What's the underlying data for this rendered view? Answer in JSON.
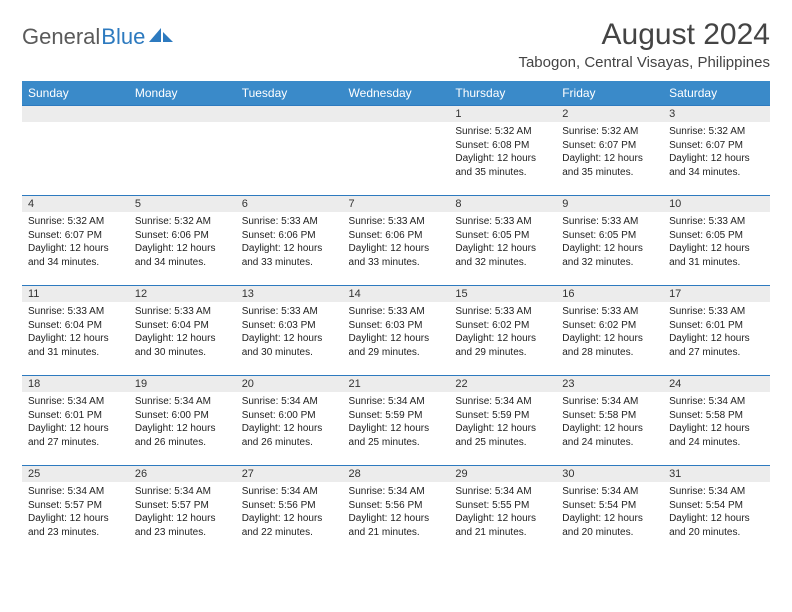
{
  "logo": {
    "word1": "General",
    "word2": "Blue"
  },
  "title": "August 2024",
  "location": "Tabogon, Central Visayas, Philippines",
  "colors": {
    "header_bg": "#3a8ac9",
    "header_text": "#ffffff",
    "daynum_bg": "#ececec",
    "cell_border": "#2d7abf",
    "logo_gray": "#5a5a5a",
    "logo_blue": "#2d7abf"
  },
  "day_headers": [
    "Sunday",
    "Monday",
    "Tuesday",
    "Wednesday",
    "Thursday",
    "Friday",
    "Saturday"
  ],
  "weeks": [
    [
      {
        "empty": true
      },
      {
        "empty": true
      },
      {
        "empty": true
      },
      {
        "empty": true
      },
      {
        "num": "1",
        "sunrise": "Sunrise: 5:32 AM",
        "sunset": "Sunset: 6:08 PM",
        "daylight": "Daylight: 12 hours and 35 minutes."
      },
      {
        "num": "2",
        "sunrise": "Sunrise: 5:32 AM",
        "sunset": "Sunset: 6:07 PM",
        "daylight": "Daylight: 12 hours and 35 minutes."
      },
      {
        "num": "3",
        "sunrise": "Sunrise: 5:32 AM",
        "sunset": "Sunset: 6:07 PM",
        "daylight": "Daylight: 12 hours and 34 minutes."
      }
    ],
    [
      {
        "num": "4",
        "sunrise": "Sunrise: 5:32 AM",
        "sunset": "Sunset: 6:07 PM",
        "daylight": "Daylight: 12 hours and 34 minutes."
      },
      {
        "num": "5",
        "sunrise": "Sunrise: 5:32 AM",
        "sunset": "Sunset: 6:06 PM",
        "daylight": "Daylight: 12 hours and 34 minutes."
      },
      {
        "num": "6",
        "sunrise": "Sunrise: 5:33 AM",
        "sunset": "Sunset: 6:06 PM",
        "daylight": "Daylight: 12 hours and 33 minutes."
      },
      {
        "num": "7",
        "sunrise": "Sunrise: 5:33 AM",
        "sunset": "Sunset: 6:06 PM",
        "daylight": "Daylight: 12 hours and 33 minutes."
      },
      {
        "num": "8",
        "sunrise": "Sunrise: 5:33 AM",
        "sunset": "Sunset: 6:05 PM",
        "daylight": "Daylight: 12 hours and 32 minutes."
      },
      {
        "num": "9",
        "sunrise": "Sunrise: 5:33 AM",
        "sunset": "Sunset: 6:05 PM",
        "daylight": "Daylight: 12 hours and 32 minutes."
      },
      {
        "num": "10",
        "sunrise": "Sunrise: 5:33 AM",
        "sunset": "Sunset: 6:05 PM",
        "daylight": "Daylight: 12 hours and 31 minutes."
      }
    ],
    [
      {
        "num": "11",
        "sunrise": "Sunrise: 5:33 AM",
        "sunset": "Sunset: 6:04 PM",
        "daylight": "Daylight: 12 hours and 31 minutes."
      },
      {
        "num": "12",
        "sunrise": "Sunrise: 5:33 AM",
        "sunset": "Sunset: 6:04 PM",
        "daylight": "Daylight: 12 hours and 30 minutes."
      },
      {
        "num": "13",
        "sunrise": "Sunrise: 5:33 AM",
        "sunset": "Sunset: 6:03 PM",
        "daylight": "Daylight: 12 hours and 30 minutes."
      },
      {
        "num": "14",
        "sunrise": "Sunrise: 5:33 AM",
        "sunset": "Sunset: 6:03 PM",
        "daylight": "Daylight: 12 hours and 29 minutes."
      },
      {
        "num": "15",
        "sunrise": "Sunrise: 5:33 AM",
        "sunset": "Sunset: 6:02 PM",
        "daylight": "Daylight: 12 hours and 29 minutes."
      },
      {
        "num": "16",
        "sunrise": "Sunrise: 5:33 AM",
        "sunset": "Sunset: 6:02 PM",
        "daylight": "Daylight: 12 hours and 28 minutes."
      },
      {
        "num": "17",
        "sunrise": "Sunrise: 5:33 AM",
        "sunset": "Sunset: 6:01 PM",
        "daylight": "Daylight: 12 hours and 27 minutes."
      }
    ],
    [
      {
        "num": "18",
        "sunrise": "Sunrise: 5:34 AM",
        "sunset": "Sunset: 6:01 PM",
        "daylight": "Daylight: 12 hours and 27 minutes."
      },
      {
        "num": "19",
        "sunrise": "Sunrise: 5:34 AM",
        "sunset": "Sunset: 6:00 PM",
        "daylight": "Daylight: 12 hours and 26 minutes."
      },
      {
        "num": "20",
        "sunrise": "Sunrise: 5:34 AM",
        "sunset": "Sunset: 6:00 PM",
        "daylight": "Daylight: 12 hours and 26 minutes."
      },
      {
        "num": "21",
        "sunrise": "Sunrise: 5:34 AM",
        "sunset": "Sunset: 5:59 PM",
        "daylight": "Daylight: 12 hours and 25 minutes."
      },
      {
        "num": "22",
        "sunrise": "Sunrise: 5:34 AM",
        "sunset": "Sunset: 5:59 PM",
        "daylight": "Daylight: 12 hours and 25 minutes."
      },
      {
        "num": "23",
        "sunrise": "Sunrise: 5:34 AM",
        "sunset": "Sunset: 5:58 PM",
        "daylight": "Daylight: 12 hours and 24 minutes."
      },
      {
        "num": "24",
        "sunrise": "Sunrise: 5:34 AM",
        "sunset": "Sunset: 5:58 PM",
        "daylight": "Daylight: 12 hours and 24 minutes."
      }
    ],
    [
      {
        "num": "25",
        "sunrise": "Sunrise: 5:34 AM",
        "sunset": "Sunset: 5:57 PM",
        "daylight": "Daylight: 12 hours and 23 minutes."
      },
      {
        "num": "26",
        "sunrise": "Sunrise: 5:34 AM",
        "sunset": "Sunset: 5:57 PM",
        "daylight": "Daylight: 12 hours and 23 minutes."
      },
      {
        "num": "27",
        "sunrise": "Sunrise: 5:34 AM",
        "sunset": "Sunset: 5:56 PM",
        "daylight": "Daylight: 12 hours and 22 minutes."
      },
      {
        "num": "28",
        "sunrise": "Sunrise: 5:34 AM",
        "sunset": "Sunset: 5:56 PM",
        "daylight": "Daylight: 12 hours and 21 minutes."
      },
      {
        "num": "29",
        "sunrise": "Sunrise: 5:34 AM",
        "sunset": "Sunset: 5:55 PM",
        "daylight": "Daylight: 12 hours and 21 minutes."
      },
      {
        "num": "30",
        "sunrise": "Sunrise: 5:34 AM",
        "sunset": "Sunset: 5:54 PM",
        "daylight": "Daylight: 12 hours and 20 minutes."
      },
      {
        "num": "31",
        "sunrise": "Sunrise: 5:34 AM",
        "sunset": "Sunset: 5:54 PM",
        "daylight": "Daylight: 12 hours and 20 minutes."
      }
    ]
  ]
}
